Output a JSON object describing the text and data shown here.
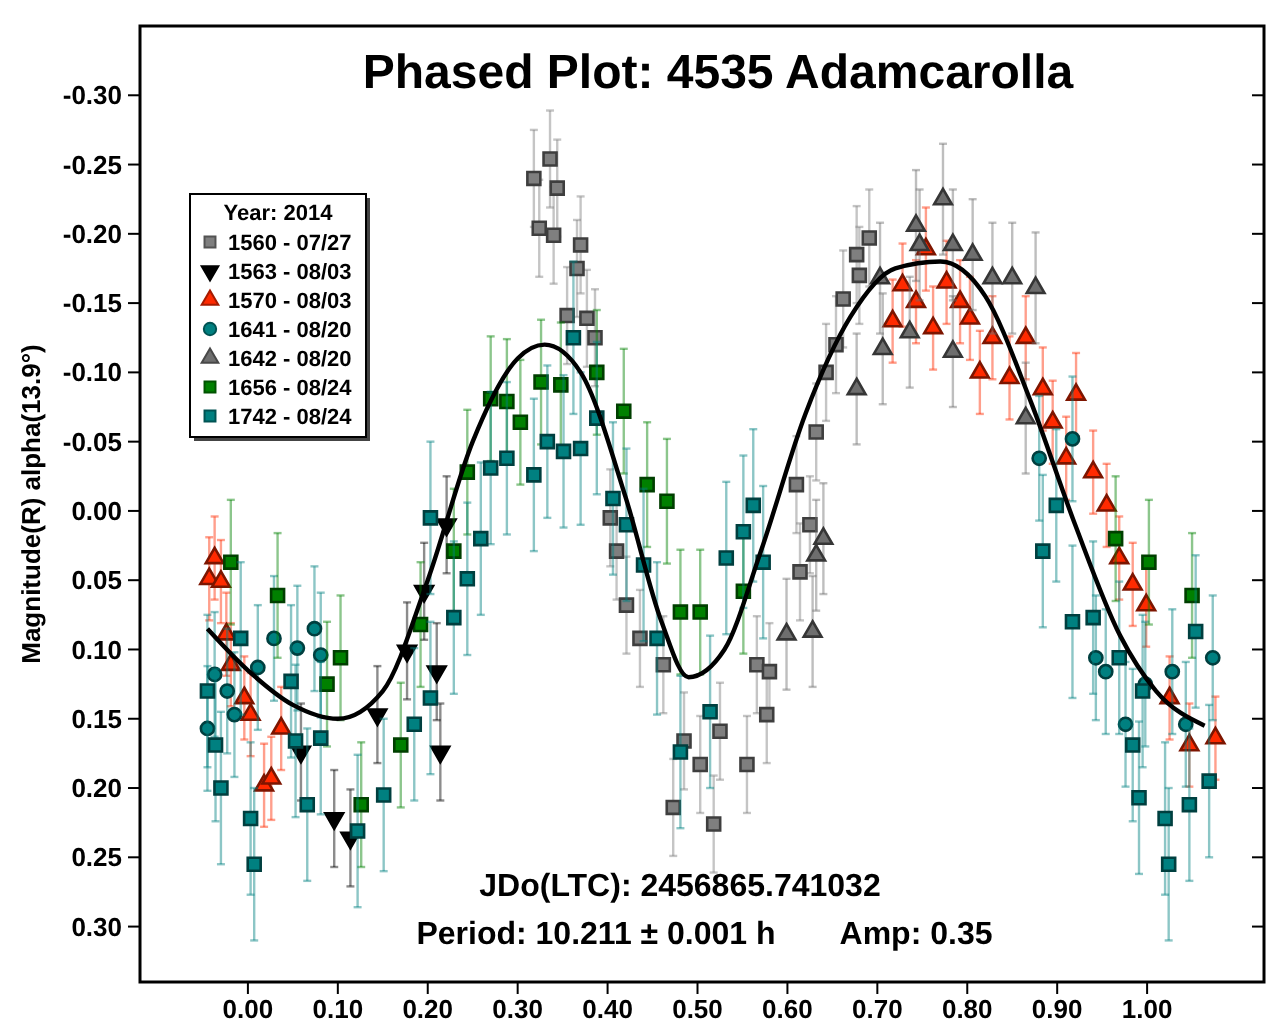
{
  "chart_data": {
    "type": "scatter",
    "title": "Phased Plot: 4535 Adamcarolla",
    "ylabel": "Magnitude(R) alpha(13.9°)",
    "legend_title": "Year: 2014",
    "legend": "top left",
    "grid": false,
    "xlim": [
      -0.12,
      1.13
    ],
    "xticks": [
      {
        "value": 0,
        "label": "0.00"
      },
      {
        "value": 0.1,
        "label": "0.10"
      },
      {
        "value": 0.2,
        "label": "0.20"
      },
      {
        "value": 0.3,
        "label": "0.30"
      },
      {
        "value": 0.4,
        "label": "0.40"
      },
      {
        "value": 0.5,
        "label": "0.50"
      },
      {
        "value": 0.6,
        "label": "0.60"
      },
      {
        "value": 0.7,
        "label": "0.70"
      },
      {
        "value": 0.8,
        "label": "0.80"
      },
      {
        "value": 0.9,
        "label": "0.90"
      },
      {
        "value": 1,
        "label": "1.00"
      }
    ],
    "ylim": [
      0.34,
      -0.35
    ],
    "yticks": [
      {
        "value": -0.3,
        "label": "-0.30"
      },
      {
        "value": -0.25,
        "label": "-0.25"
      },
      {
        "value": -0.2,
        "label": "-0.20"
      },
      {
        "value": -0.15,
        "label": "-0.15"
      },
      {
        "value": -0.1,
        "label": "-0.10"
      },
      {
        "value": -0.05,
        "label": "-0.05"
      },
      {
        "value": 0,
        "label": "0.00"
      },
      {
        "value": 0.05,
        "label": "0.05"
      },
      {
        "value": 0.1,
        "label": "0.10"
      },
      {
        "value": 0.15,
        "label": "0.15"
      },
      {
        "value": 0.2,
        "label": "0.20"
      },
      {
        "value": 0.25,
        "label": "0.25"
      },
      {
        "value": 0.3,
        "label": "0.30"
      }
    ],
    "annotations": [
      "JDo(LTC): 2456865.741032",
      "Period: 10.211 ± 0.001 h",
      "Amp: 0.35"
    ],
    "series": [
      {
        "name": "1560 - 07/27",
        "color": "#7f7f7f",
        "marker": "square",
        "x": [
          0.318,
          0.336,
          0.344,
          0.324,
          0.34,
          0.37,
          0.366,
          0.355,
          0.377,
          0.386,
          0.403,
          0.41,
          0.421,
          0.436,
          0.462,
          0.485,
          0.473,
          0.503,
          0.525,
          0.555,
          0.577,
          0.566,
          0.58,
          0.614,
          0.625,
          0.61,
          0.632,
          0.643,
          0.654,
          0.662,
          0.677,
          0.691,
          0.68,
          0.518
        ],
        "values": [
          -0.24,
          -0.254,
          -0.233,
          -0.204,
          -0.199,
          -0.192,
          -0.175,
          -0.141,
          -0.139,
          -0.125,
          0.005,
          0.029,
          0.068,
          0.092,
          0.111,
          0.166,
          0.214,
          0.183,
          0.159,
          0.183,
          0.147,
          0.111,
          0.116,
          0.044,
          0.01,
          -0.019,
          -0.057,
          -0.1,
          -0.12,
          -0.153,
          -0.185,
          -0.197,
          -0.17,
          0.226
        ],
        "errors": [
          0.035,
          0.035,
          0.035,
          0.035,
          0.035,
          0.035,
          0.035,
          0.035,
          0.035,
          0.035,
          0.035,
          0.035,
          0.035,
          0.035,
          0.035,
          0.035,
          0.035,
          0.035,
          0.035,
          0.035,
          0.035,
          0.035,
          0.035,
          0.035,
          0.035,
          0.035,
          0.035,
          0.035,
          0.035,
          0.035,
          0.035,
          0.035,
          0.035,
          0.035
        ]
      },
      {
        "name": "1563 - 08/03",
        "color": "#000000",
        "marker": "triangle-down",
        "x": [
          0.114,
          0.096,
          0.196,
          0.21,
          0.214,
          0.177,
          0.144,
          0.221,
          0.059
        ],
        "values": [
          0.236,
          0.222,
          0.058,
          0.116,
          0.174,
          0.101,
          0.147,
          0.01,
          0.174
        ],
        "errors": [
          0.035,
          0.035,
          0.035,
          0.035,
          0.035,
          0.035,
          0.035,
          0.035,
          0.035
        ]
      },
      {
        "name": "1570 - 08/03",
        "color": "#ff2a00",
        "marker": "triangle",
        "x": [
          -0.043,
          -0.037,
          -0.03,
          -0.024,
          -0.004,
          0.003,
          0.018,
          0.026,
          0.037,
          -0.019,
          0.717,
          0.728,
          0.743,
          0.754,
          0.762,
          0.777,
          0.792,
          0.803,
          0.814,
          0.828,
          0.847,
          0.865,
          0.884,
          0.895,
          0.921,
          0.94,
          0.955,
          0.969,
          0.984,
          0.999,
          1.025,
          1.047,
          1.076,
          0.91
        ],
        "values": [
          0.049,
          0.034,
          0.051,
          0.089,
          0.135,
          0.147,
          0.198,
          0.193,
          0.157,
          0.111,
          -0.137,
          -0.163,
          -0.151,
          -0.189,
          -0.132,
          -0.165,
          -0.151,
          -0.139,
          -0.1,
          -0.125,
          -0.096,
          -0.125,
          -0.088,
          -0.064,
          -0.084,
          -0.028,
          -0.004,
          0.034,
          0.053,
          0.068,
          0.135,
          0.169,
          0.164,
          -0.038
        ],
        "errors": [
          0.03,
          0.03,
          0.03,
          0.03,
          0.03,
          0.03,
          0.03,
          0.03,
          0.03,
          0.03,
          0.03,
          0.03,
          0.03,
          0.03,
          0.03,
          0.03,
          0.03,
          0.03,
          0.03,
          0.03,
          0.03,
          0.03,
          0.03,
          0.03,
          0.03,
          0.03,
          0.03,
          0.03,
          0.03,
          0.03,
          0.03,
          0.03,
          0.03,
          0.03
        ]
      },
      {
        "name": "1641 - 08/20",
        "color": "#008080",
        "marker": "circle",
        "x": [
          -0.045,
          -0.037,
          -0.023,
          0.011,
          0.029,
          0.055,
          0.074,
          0.081,
          -0.015,
          0.88,
          0.917,
          0.943,
          0.954,
          0.976,
          0.998,
          1.028,
          1.043,
          1.073
        ],
        "values": [
          0.157,
          0.118,
          0.13,
          0.113,
          0.092,
          0.099,
          0.085,
          0.104,
          0.147,
          -0.038,
          -0.052,
          0.106,
          0.116,
          0.154,
          0.125,
          0.116,
          0.154,
          0.106
        ],
        "errors": [
          0.045,
          0.045,
          0.045,
          0.045,
          0.045,
          0.045,
          0.045,
          0.045,
          0.045,
          0.045,
          0.045,
          0.045,
          0.045,
          0.045,
          0.045,
          0.045,
          0.045,
          0.045
        ]
      },
      {
        "name": "1642 - 08/20",
        "color": "#6e6e6e",
        "marker": "triangle",
        "x": [
          0.773,
          0.743,
          0.703,
          0.706,
          0.736,
          0.784,
          0.806,
          0.828,
          0.85,
          0.876,
          0.865,
          0.677,
          0.64,
          0.632,
          0.599,
          0.628,
          0.747,
          0.784
        ],
        "values": [
          -0.225,
          -0.206,
          -0.168,
          -0.117,
          -0.129,
          -0.115,
          -0.185,
          -0.168,
          -0.168,
          -0.161,
          -0.067,
          -0.088,
          0.02,
          0.032,
          0.089,
          0.087,
          -0.192,
          -0.192
        ],
        "errors": [
          0.04,
          0.04,
          0.04,
          0.04,
          0.04,
          0.04,
          0.04,
          0.04,
          0.04,
          0.04,
          0.04,
          0.04,
          0.04,
          0.04,
          0.04,
          0.04,
          0.04,
          0.04
        ]
      },
      {
        "name": "1656 - 08/24",
        "color": "#008000",
        "marker": "square",
        "x": [
          -0.019,
          0.033,
          0.103,
          0.088,
          0.126,
          0.17,
          0.192,
          0.229,
          0.244,
          0.27,
          0.288,
          0.303,
          0.326,
          0.348,
          0.388,
          0.418,
          0.444,
          0.466,
          0.481,
          0.503,
          0.551,
          1.002,
          1.05,
          0.965
        ],
        "values": [
          0.037,
          0.061,
          0.106,
          0.125,
          0.212,
          0.169,
          0.082,
          0.029,
          -0.028,
          -0.081,
          -0.079,
          -0.064,
          -0.093,
          -0.091,
          -0.1,
          -0.072,
          -0.019,
          -0.007,
          0.073,
          0.073,
          0.058,
          0.037,
          0.061,
          0.02
        ],
        "errors": [
          0.045,
          0.045,
          0.045,
          0.045,
          0.045,
          0.045,
          0.045,
          0.045,
          0.045,
          0.045,
          0.045,
          0.045,
          0.045,
          0.045,
          0.045,
          0.045,
          0.045,
          0.045,
          0.045,
          0.045,
          0.045,
          0.045,
          0.045,
          0.045
        ]
      },
      {
        "name": "1742 - 08/24",
        "color": "#008080",
        "marker": "square",
        "x": [
          -0.045,
          -0.036,
          -0.03,
          0.003,
          0.007,
          -0.008,
          0.053,
          0.048,
          0.081,
          0.066,
          0.122,
          0.151,
          0.185,
          0.203,
          0.229,
          0.244,
          0.259,
          0.27,
          0.288,
          0.318,
          0.333,
          0.351,
          0.37,
          0.388,
          0.362,
          0.406,
          0.421,
          0.44,
          0.455,
          0.203,
          0.481,
          0.514,
          0.532,
          0.562,
          0.573,
          0.551,
          0.884,
          0.899,
          0.917,
          0.94,
          0.969,
          0.984,
          0.991,
          1.024,
          1.02,
          1.047,
          1.069,
          1.054,
          0.995
        ],
        "values": [
          0.13,
          0.169,
          0.2,
          0.222,
          0.255,
          0.092,
          0.166,
          0.123,
          0.164,
          0.212,
          0.231,
          0.205,
          0.154,
          0.135,
          0.077,
          0.049,
          0.02,
          -0.031,
          -0.038,
          -0.026,
          -0.05,
          -0.043,
          -0.045,
          -0.067,
          -0.125,
          -0.009,
          0.01,
          0.039,
          0.092,
          0.005,
          0.174,
          0.145,
          0.034,
          -0.004,
          0.037,
          0.015,
          0.029,
          -0.004,
          0.08,
          0.077,
          0.106,
          0.169,
          0.207,
          0.255,
          0.222,
          0.212,
          0.195,
          0.087,
          0.13
        ],
        "errors": [
          0.055,
          0.055,
          0.055,
          0.055,
          0.055,
          0.055,
          0.055,
          0.055,
          0.055,
          0.055,
          0.055,
          0.055,
          0.055,
          0.055,
          0.055,
          0.055,
          0.055,
          0.055,
          0.055,
          0.055,
          0.055,
          0.055,
          0.055,
          0.055,
          0.055,
          0.055,
          0.055,
          0.055,
          0.055,
          0.055,
          0.055,
          0.055,
          0.055,
          0.055,
          0.055,
          0.055,
          0.055,
          0.055,
          0.055,
          0.055,
          0.055,
          0.055,
          0.055,
          0.055,
          0.055,
          0.055,
          0.055,
          0.055,
          0.055
        ]
      },
      {
        "type": "line",
        "color": "#000000",
        "line_style": "solid",
        "x": [
          -0.045,
          0.0,
          0.05,
          0.1,
          0.15,
          0.2,
          0.25,
          0.3,
          0.33,
          0.37,
          0.42,
          0.46,
          0.49,
          0.53,
          0.57,
          0.62,
          0.67,
          0.72,
          0.77,
          0.82,
          0.87,
          0.92,
          0.97,
          1.01,
          1.064
        ],
        "values": [
          0.085,
          0.115,
          0.14,
          0.15,
          0.13,
          0.05,
          -0.05,
          -0.11,
          -0.12,
          -0.1,
          -0.01,
          0.08,
          0.12,
          0.1,
          0.03,
          -0.07,
          -0.14,
          -0.175,
          -0.18,
          -0.155,
          -0.08,
          0.01,
          0.09,
          0.13,
          0.155
        ]
      }
    ]
  }
}
